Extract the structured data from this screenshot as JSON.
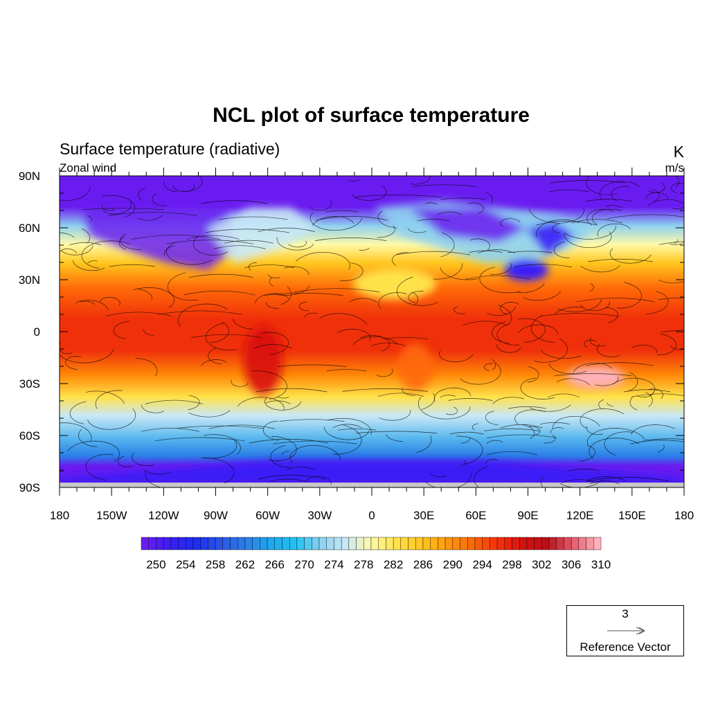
{
  "title": "NCL plot of surface temperature",
  "left_string": "Surface temperature (radiative)",
  "right_string": "K",
  "left_substring": "Zonal wind",
  "right_substring": "m/s",
  "map": {
    "projection": "cylindrical equidistant",
    "lat_range": [
      -90,
      90
    ],
    "lon_range": [
      -180,
      180
    ],
    "lat_ticks": [
      "90N",
      "60N",
      "30N",
      "0",
      "30S",
      "60S",
      "90S"
    ],
    "lon_ticks": [
      "180",
      "150W",
      "120W",
      "90W",
      "60W",
      "30W",
      "0",
      "30E",
      "60E",
      "90E",
      "120E",
      "150E",
      "180"
    ],
    "overlay": "streamlines of wind vectors"
  },
  "colorbar": {
    "min": 250,
    "max": 311,
    "step": 1,
    "labels": [
      "250",
      "254",
      "258",
      "262",
      "266",
      "270",
      "274",
      "278",
      "282",
      "286",
      "290",
      "294",
      "298",
      "302",
      "306",
      "310"
    ],
    "colors": [
      "#6a1cf0",
      "#3a1ef6",
      "#1e2cf0",
      "#2a55e8",
      "#2e7ee6",
      "#1fa8ee",
      "#1fc3f2",
      "#8ed0f0",
      "#c9e8f6",
      "#fffaa8",
      "#ffe24a",
      "#ffc61e",
      "#ff9a0a",
      "#ff6a08",
      "#f6320a",
      "#d8120f",
      "#b80f18",
      "#e45a6a",
      "#ffb0b8"
    ]
  },
  "reference_vector": {
    "magnitude": "3",
    "label": "Reference Vector"
  }
}
